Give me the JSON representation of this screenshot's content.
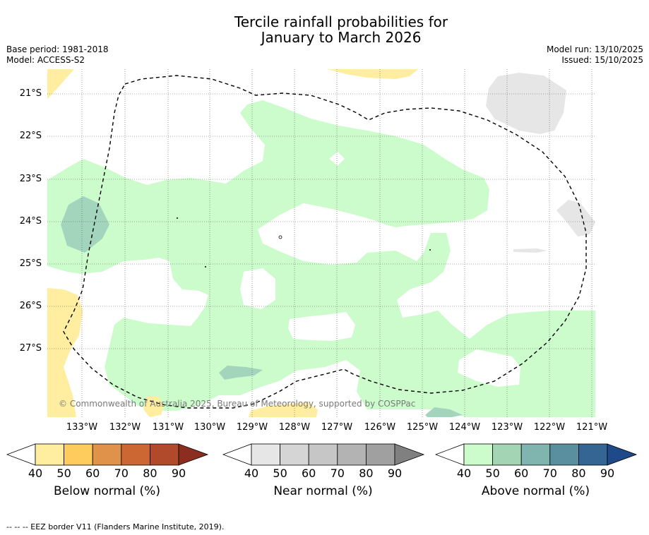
{
  "title": {
    "line1": "Tercile rainfall probabilities for",
    "line2": "January to March 2026"
  },
  "left_info": {
    "base_period": "Base period: 1981-2018",
    "model": "Model: ACCESS-S2"
  },
  "right_info": {
    "model_run": "Model run: 13/10/2025",
    "issued": "Issued: 15/10/2025"
  },
  "map": {
    "lat_labels": [
      "21°S",
      "22°S",
      "23°S",
      "24°S",
      "25°S",
      "26°S",
      "27°S"
    ],
    "lon_labels": [
      "133°W",
      "132°W",
      "131°W",
      "130°W",
      "129°W",
      "128°W",
      "127°W",
      "126°W",
      "125°W",
      "124°W",
      "123°W",
      "122°W",
      "121°W"
    ],
    "copyright": "© Commonwealth of Australia 2025, Bureau of Meteorology, supported by COSPPac",
    "colors": {
      "above_50": "#ccfccc",
      "above_60": "#a3d4bc",
      "below_50": "#ffeda0",
      "near_50": "#e6e6e6",
      "border": "#000000"
    }
  },
  "colorbars": [
    {
      "title": "Below normal (%)",
      "ticks": [
        "40",
        "50",
        "60",
        "70",
        "80",
        "90"
      ],
      "colors": [
        "#ffeda0",
        "#fecc5c",
        "#e0924a",
        "#cc6633",
        "#b04a2a",
        "#8b2d1f"
      ]
    },
    {
      "title": "Near normal (%)",
      "ticks": [
        "40",
        "50",
        "60",
        "70",
        "80",
        "90"
      ],
      "colors": [
        "#e6e6e6",
        "#d5d5d5",
        "#c6c6c6",
        "#b3b3b3",
        "#a0a0a0",
        "#808080"
      ]
    },
    {
      "title": "Above normal (%)",
      "ticks": [
        "40",
        "50",
        "60",
        "70",
        "80",
        "90"
      ],
      "colors": [
        "#ccfccc",
        "#a3d4b4",
        "#80b4ae",
        "#5a8f9f",
        "#356593",
        "#1f4a8a"
      ]
    }
  ],
  "footnote": "--  --  -- EEZ border V11 (Flanders Marine Institute, 2019)."
}
